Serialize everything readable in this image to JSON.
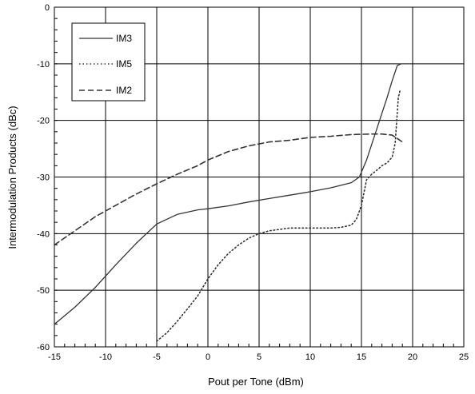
{
  "chart_data": {
    "type": "line",
    "title": "",
    "xlabel": "Pout per Tone (dBm)",
    "ylabel": "Intermodulation Products (dBc)",
    "xlim": [
      -15,
      25
    ],
    "ylim": [
      -60,
      0
    ],
    "xticks": [
      -15,
      -10,
      -5,
      0,
      5,
      10,
      15,
      20,
      25
    ],
    "yticks": [
      0,
      -10,
      -20,
      -30,
      -40,
      -50,
      -60
    ],
    "grid": true,
    "legend_position": "top-left",
    "series": [
      {
        "name": "IM3",
        "style": "solid",
        "color": "#333333",
        "x": [
          -15,
          -13,
          -11,
          -9,
          -7,
          -5,
          -3,
          -1,
          0,
          2,
          4,
          6,
          8,
          10,
          12,
          14,
          14.8,
          15.5,
          16.5,
          17.5,
          18,
          18.5,
          18.9
        ],
        "y": [
          -56,
          -53,
          -49.5,
          -45.5,
          -41.7,
          -38.3,
          -36.6,
          -35.8,
          -35.6,
          -35.1,
          -34.4,
          -33.8,
          -33.2,
          -32.6,
          -31.9,
          -31,
          -30,
          -27,
          -21.5,
          -16,
          -13,
          -10.3,
          -10
        ]
      },
      {
        "name": "IM5",
        "style": "dotted",
        "color": "#333333",
        "x": [
          -5,
          -4,
          -3,
          -2,
          -1,
          0,
          1,
          2,
          3,
          4,
          5,
          6,
          8,
          10,
          12,
          13,
          14,
          14.5,
          15,
          15.5,
          16,
          16.5,
          17,
          17.5,
          18,
          18.3,
          18.6,
          18.8
        ],
        "y": [
          -59,
          -57.5,
          -55.5,
          -53.3,
          -51,
          -48,
          -45.5,
          -43.5,
          -42,
          -40.8,
          -40,
          -39.5,
          -39,
          -39,
          -39,
          -38.9,
          -38.5,
          -37.5,
          -35,
          -30.5,
          -29.5,
          -28.8,
          -28,
          -27.5,
          -26.5,
          -24,
          -16,
          -14.5
        ]
      },
      {
        "name": "IM2",
        "style": "dashed",
        "color": "#333333",
        "x": [
          -15,
          -13,
          -11,
          -9,
          -7,
          -5,
          -3,
          -1,
          0,
          2,
          4,
          6,
          8,
          10,
          12,
          14,
          16,
          17,
          18,
          18.5,
          19
        ],
        "y": [
          -42,
          -39.5,
          -37,
          -35,
          -33,
          -31.2,
          -29.5,
          -28,
          -27,
          -25.5,
          -24.5,
          -23.8,
          -23.5,
          -23,
          -22.8,
          -22.5,
          -22.4,
          -22.4,
          -22.6,
          -23.2,
          -23.8
        ]
      }
    ]
  }
}
